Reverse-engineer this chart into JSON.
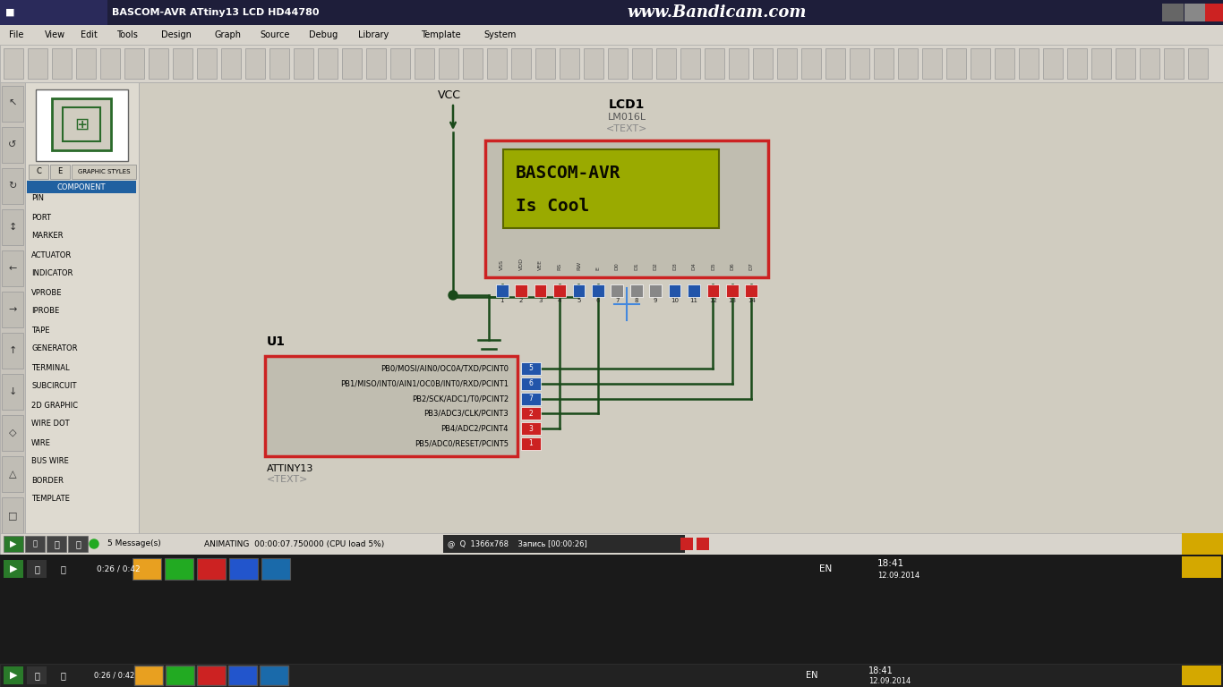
{
  "fig_w": 13.66,
  "fig_h": 7.68,
  "bg_color": "#c8c4b8",
  "title_bar_color": "#2a2a4a",
  "title_text": "BASCOM-AVR ATtiny13 LCD HD44780",
  "watermark": "www.Bandicam.com",
  "schematic_bg": "#d0ccc0",
  "lcd_border_color": "#cc2222",
  "lcd_bg_outer": "#c0bdb0",
  "lcd_screen_bg": "#9aaa00",
  "lcd_screen_border": "#606800",
  "lcd_screen_text_color": "#111100",
  "lcd_line1": "BASCOM-AVR",
  "lcd_line2": "Is Cool",
  "lcd_label": "LCD1",
  "lcd_sublabel1": "LM016L",
  "lcd_sublabel2": "<TEXT>",
  "mcu_border_color": "#cc2222",
  "mcu_bg": "#c0bdb0",
  "mcu_label": "U1",
  "mcu_sublabel1": "ATTINY13",
  "mcu_sublabel2": "<TEXT>",
  "mcu_pins": [
    "PB0/MOSI/AIN0/OC0A/TXD/PCINT0",
    "PB1/MISO/INT0/AIN1/OC0B/INT0/RXD/PCINT1",
    "PB2/SCK/ADC1/T0/PCINT2",
    "PB3/ADC3/CLK/PCINT3",
    "PB4/ADC2/PCINT4",
    "PB5/ADC0/RESET/PCINT5"
  ],
  "mcu_pin_numbers": [
    "5",
    "6",
    "7",
    "2",
    "3",
    "1"
  ],
  "mcu_pin_colors": [
    "#2255aa",
    "#2255aa",
    "#2255aa",
    "#cc2222",
    "#cc2222",
    "#cc2222"
  ],
  "lcd_pin_labels": [
    "VSS",
    "VDD",
    "VEE",
    "RS",
    "RW",
    "E",
    "D0",
    "D1",
    "D2",
    "D3",
    "D4",
    "D5",
    "D6",
    "D7"
  ],
  "lcd_pin_numbers": [
    "1",
    "2",
    "3",
    "4",
    "5",
    "6",
    "7",
    "8",
    "9",
    "10",
    "11",
    "12",
    "13",
    "14"
  ],
  "lcd_pin_colors": [
    "#2255aa",
    "#cc2222",
    "#cc2222",
    "#cc2222",
    "#2255aa",
    "#2255aa",
    "#888888",
    "#888888",
    "#888888",
    "#2255aa",
    "#2255aa",
    "#cc2222",
    "#cc2222",
    "#cc2222"
  ],
  "vcc_label": "VCC",
  "wire_color": "#1a4a1a",
  "sidebar_bg": "#dedad0",
  "sidebar_selected_bg": "#2060a0",
  "sidebar_items": [
    "COMPONENT",
    "PIN",
    "PORT",
    "MARKER",
    "ACTUATOR",
    "INDICATOR",
    "VPROBE",
    "IPROBE",
    "TAPE",
    "GENERATOR",
    "TERMINAL",
    "SUBCIRCUIT",
    "2D GRAPHIC",
    "WIRE DOT",
    "WIRE",
    "BUS WIRE",
    "BORDER",
    "TEMPLATE"
  ],
  "statusbar_text": "ANIMATING  00:00:07.750000 (CPU load 5%)",
  "cursor_color": "#4488dd",
  "menu_items": [
    "File",
    "View",
    "Edit",
    "Tools",
    "Design",
    "Graph",
    "Source",
    "Debug",
    "Library",
    "Template",
    "System"
  ]
}
